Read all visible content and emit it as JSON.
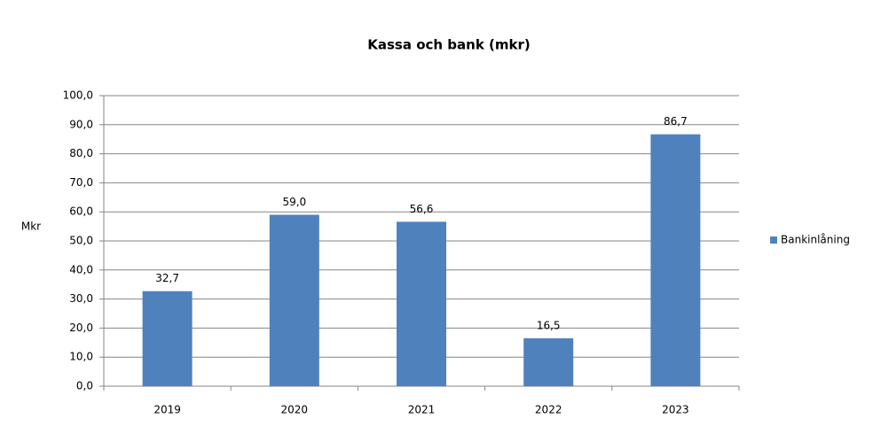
{
  "chart_data": {
    "type": "bar",
    "title": "Kassa och bank (mkr)",
    "y_label": "Mkr",
    "categories": [
      "2019",
      "2020",
      "2021",
      "2022",
      "2023"
    ],
    "series": [
      {
        "name": "Bankinlåning",
        "color": "#4f81bd",
        "values": [
          32.7,
          59.0,
          56.6,
          16.5,
          86.7
        ],
        "value_labels": [
          "32,7",
          "59,0",
          "56,6",
          "16,5",
          "86,7"
        ]
      }
    ],
    "ylim": [
      0,
      100
    ],
    "yticks": [
      {
        "value": 0,
        "label": "0,0"
      },
      {
        "value": 10,
        "label": "10,0"
      },
      {
        "value": 20,
        "label": "20,0"
      },
      {
        "value": 30,
        "label": "30,0"
      },
      {
        "value": 40,
        "label": "40,0"
      },
      {
        "value": 50,
        "label": "50,0"
      },
      {
        "value": 60,
        "label": "60,0"
      },
      {
        "value": 70,
        "label": "70,0"
      },
      {
        "value": 80,
        "label": "80,0"
      },
      {
        "value": 90,
        "label": "90,0"
      },
      {
        "value": 100,
        "label": "100,0"
      }
    ],
    "grid": true,
    "legend": "right"
  }
}
